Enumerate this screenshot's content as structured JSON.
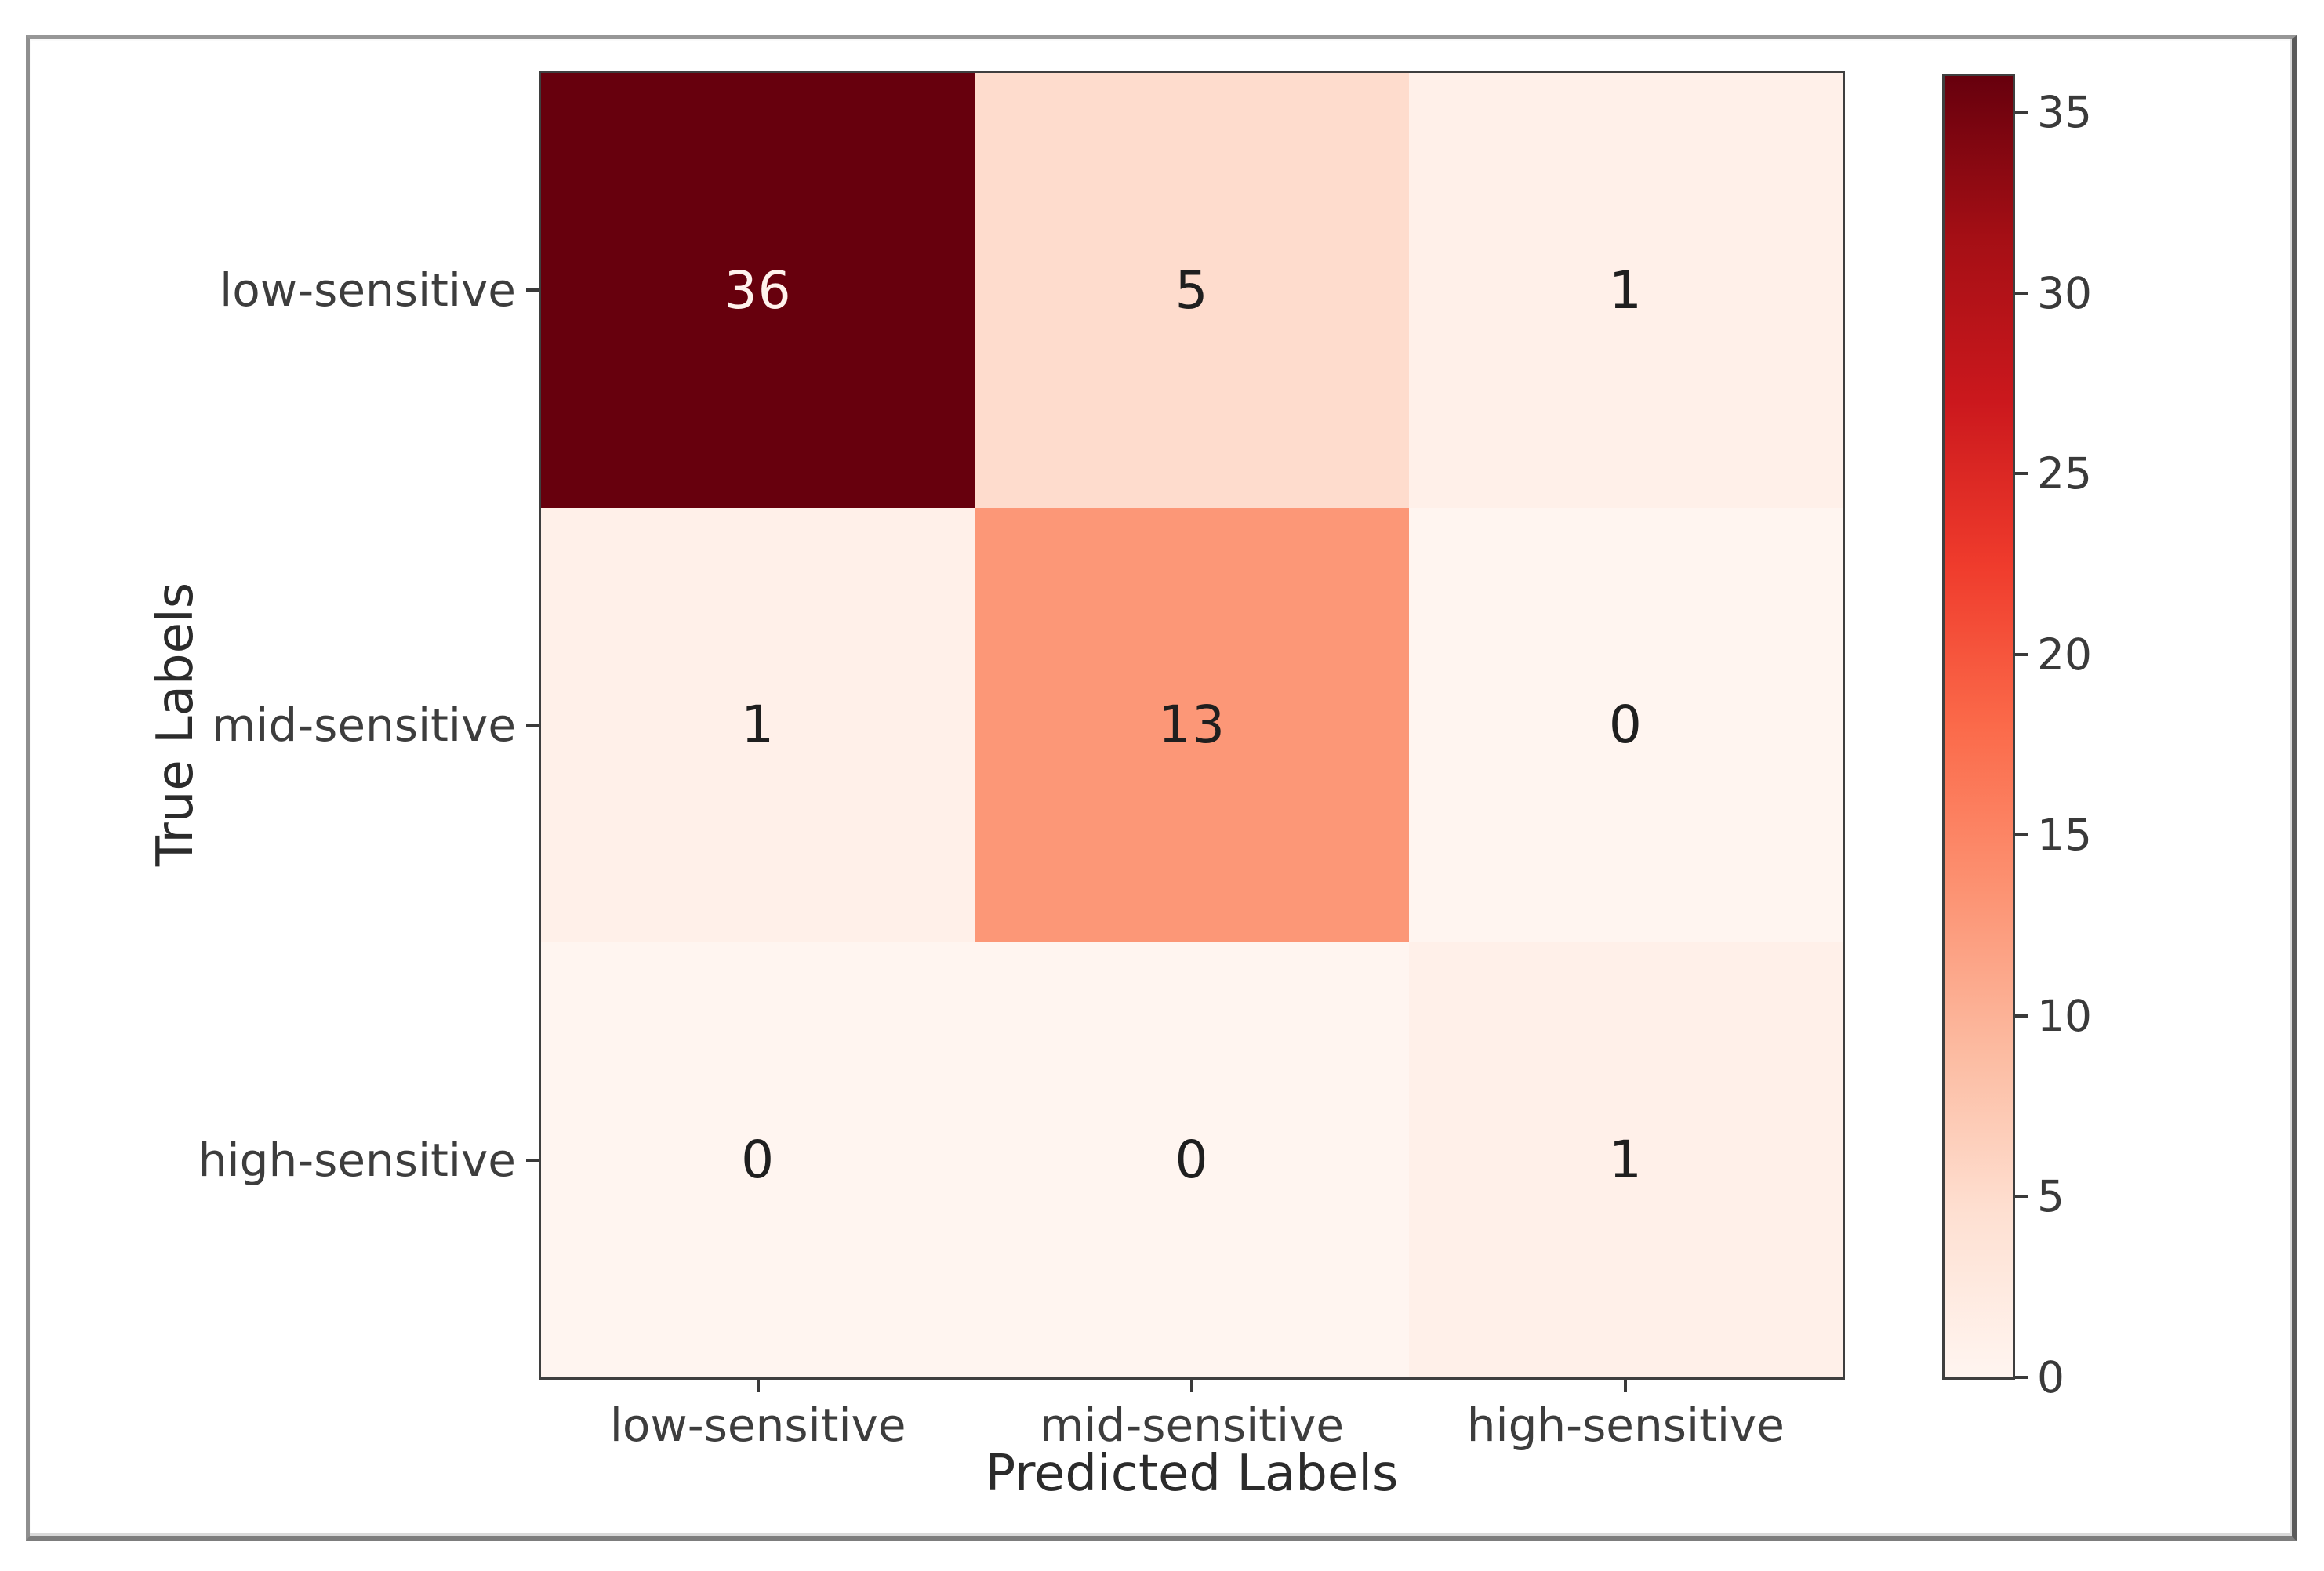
{
  "figure": {
    "background_color": "#ffffff",
    "frame_color": "#8f8f8f"
  },
  "chart_data": {
    "type": "heatmap",
    "title": "",
    "xlabel": "Predicted Labels",
    "ylabel": "True Labels",
    "x_categories": [
      "low-sensitive",
      "mid-sensitive",
      "high-sensitive"
    ],
    "y_categories": [
      "low-sensitive",
      "mid-sensitive",
      "high-sensitive"
    ],
    "matrix": [
      [
        36,
        5,
        1
      ],
      [
        1,
        13,
        0
      ],
      [
        0,
        0,
        1
      ]
    ],
    "vmin": 0,
    "vmax": 36,
    "colormap": "Reds",
    "grid": false,
    "legend_position": "right-colorbar",
    "colorbar_ticks": [
      0,
      5,
      10,
      15,
      20,
      25,
      30,
      35
    ],
    "colormap_stops": [
      {
        "pos": 0.0,
        "color": "#fff5f0"
      },
      {
        "pos": 0.125,
        "color": "#fee0d2"
      },
      {
        "pos": 0.25,
        "color": "#fcbba1"
      },
      {
        "pos": 0.375,
        "color": "#fc9272"
      },
      {
        "pos": 0.5,
        "color": "#fb6a4a"
      },
      {
        "pos": 0.625,
        "color": "#ef3b2c"
      },
      {
        "pos": 0.75,
        "color": "#cb181d"
      },
      {
        "pos": 0.875,
        "color": "#a50f15"
      },
      {
        "pos": 1.0,
        "color": "#67000d"
      }
    ],
    "cell_text_color_dark": "#1f1f1f",
    "cell_text_color_light": "#fff2ed",
    "text_color_threshold": 0.5
  }
}
